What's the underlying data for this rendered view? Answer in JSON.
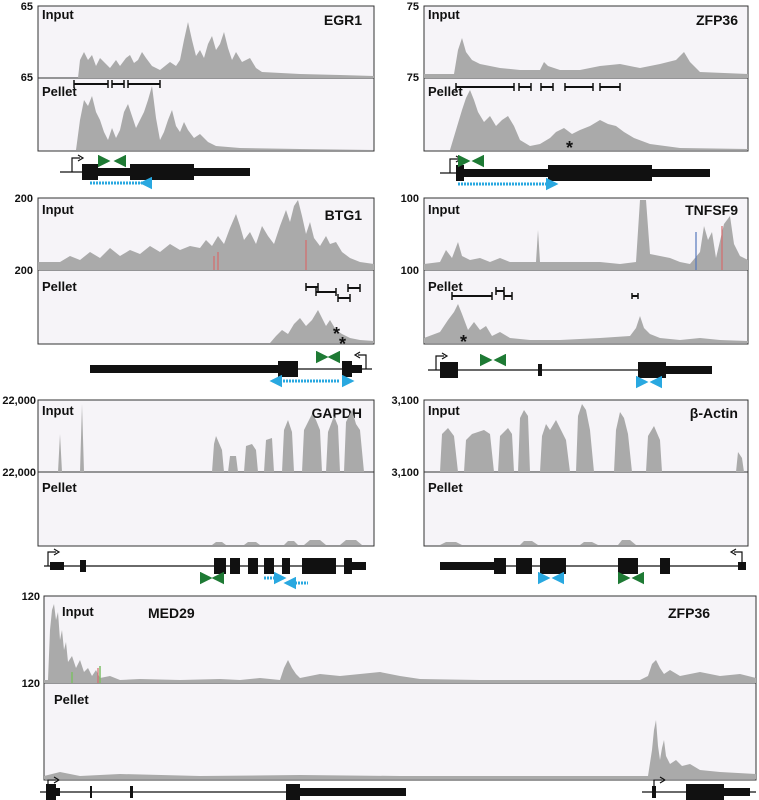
{
  "track_labels": {
    "input": "Input",
    "pellet": "Pellet"
  },
  "panels": [
    {
      "id": "egr1",
      "gene": "EGR1",
      "scale_top": "65",
      "scale_mid": "65"
    },
    {
      "id": "zfp36",
      "gene": "ZFP36",
      "scale_top": "75",
      "scale_mid": "75"
    },
    {
      "id": "btg1",
      "gene": "BTG1",
      "scale_top": "200",
      "scale_mid": "200"
    },
    {
      "id": "tnfsf9",
      "gene": "TNFSF9",
      "scale_top": "100",
      "scale_mid": "100"
    },
    {
      "id": "gapdh",
      "gene": "GAPDH",
      "scale_top": "22,000",
      "scale_mid": "22,000"
    },
    {
      "id": "actin",
      "gene": "β-Actin",
      "scale_top": "3,100",
      "scale_mid": "3,100"
    },
    {
      "id": "med29",
      "gene": "MED29",
      "gene2": "ZFP36",
      "scale_top": "120",
      "scale_mid": "120"
    }
  ],
  "annotations": {
    "asterisk": "*"
  },
  "colors": {
    "signal": "#aaaaaa",
    "panel_bg": "#f6f4f8",
    "green_primer": "#1e7a34",
    "blue_primer": "#29a8e0",
    "exon": "#111111"
  }
}
